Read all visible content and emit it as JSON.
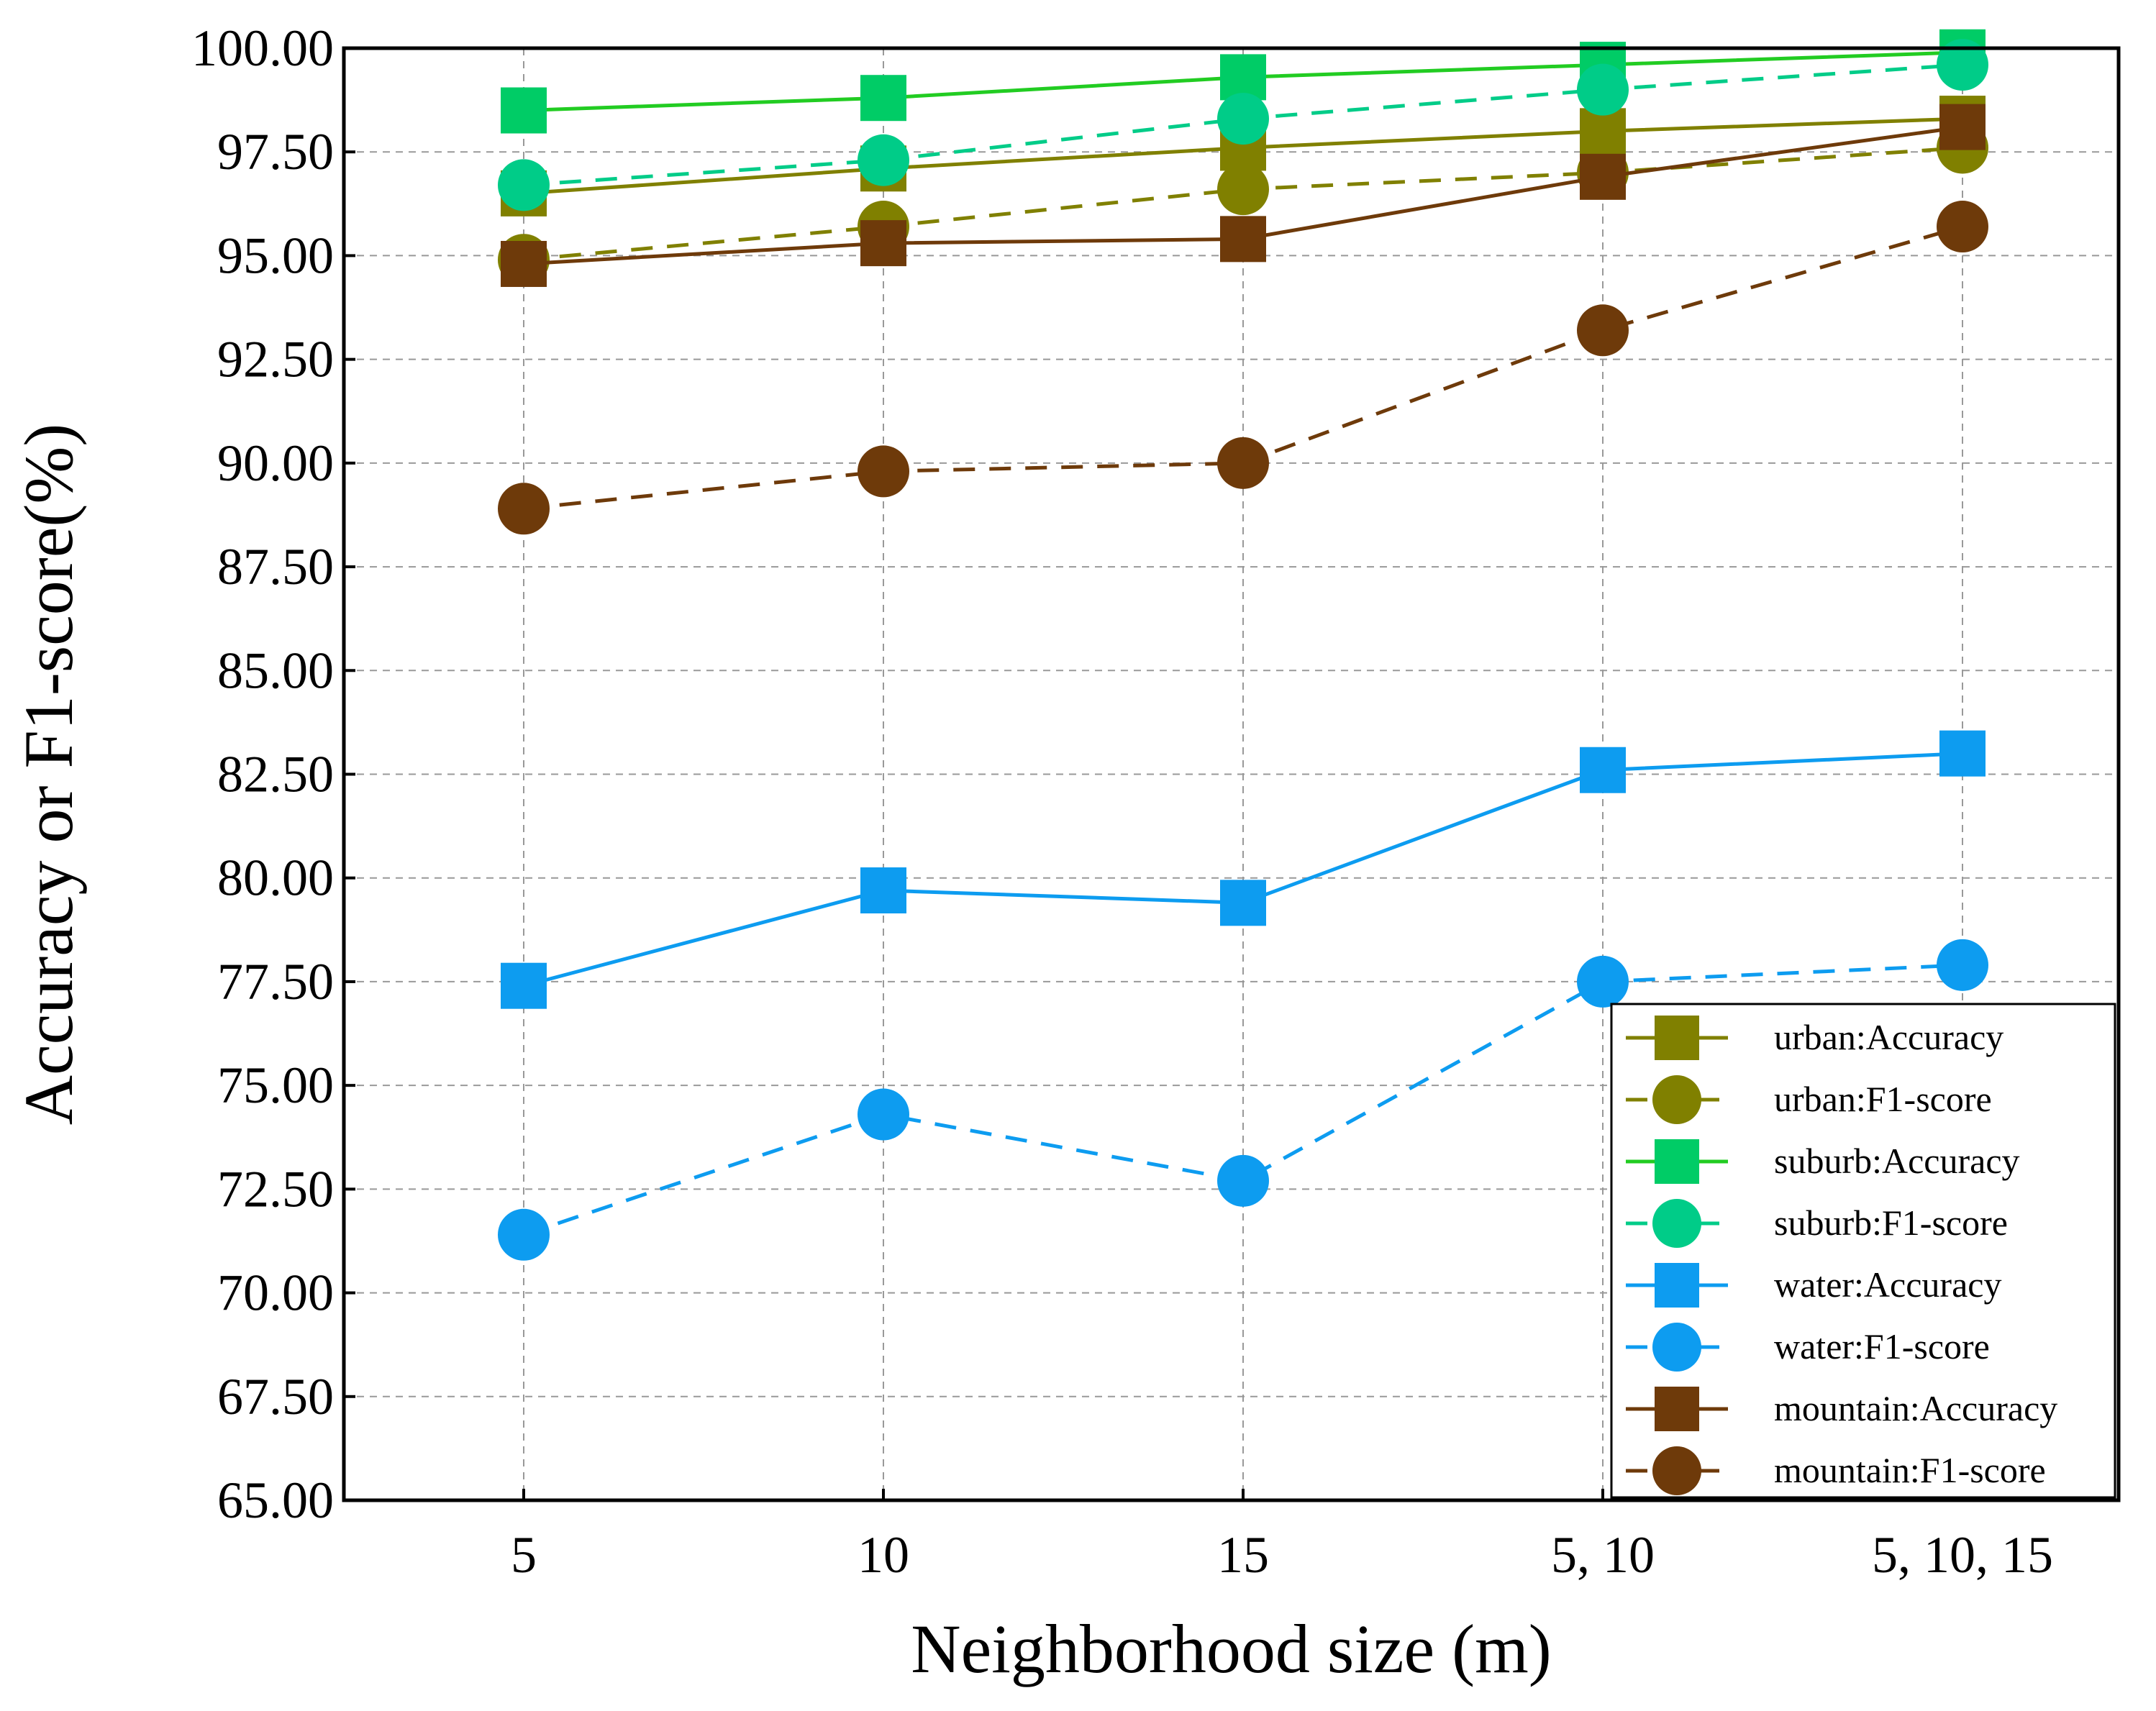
{
  "chart_data": {
    "type": "line",
    "title": "",
    "xlabel": "Neighborhood size (m)",
    "ylabel": "Accuracy or F1-score(%)",
    "categories": [
      "5",
      "10",
      "15",
      "5, 10",
      "5, 10, 15"
    ],
    "ylim": [
      65.0,
      100.0
    ],
    "yticks": [
      "65.00",
      "67.50",
      "70.00",
      "72.50",
      "75.00",
      "77.50",
      "80.00",
      "82.50",
      "85.00",
      "87.50",
      "90.00",
      "92.50",
      "95.00",
      "97.50",
      "100.00"
    ],
    "grid": true,
    "legend_position": "bottom-right",
    "series": [
      {
        "name": "urban:Accuracy",
        "color": "#808000",
        "marker": "square",
        "dashed": false,
        "values": [
          96.5,
          97.1,
          97.6,
          98.0,
          98.3
        ]
      },
      {
        "name": "urban:F1-score",
        "color": "#808000",
        "marker": "circle",
        "dashed": true,
        "values": [
          94.9,
          95.7,
          96.6,
          97.0,
          97.6
        ]
      },
      {
        "name": "suburb:Accuracy",
        "color": "#00CC66",
        "line_color": "#22CC22",
        "marker": "square",
        "dashed": false,
        "values": [
          98.5,
          98.8,
          99.3,
          99.6,
          99.9
        ]
      },
      {
        "name": "suburb:F1-score",
        "color": "#00CC88",
        "marker": "circle",
        "dashed": true,
        "values": [
          96.7,
          97.3,
          98.3,
          99.0,
          99.6
        ]
      },
      {
        "name": "water:Accuracy",
        "color": "#0D9CF0",
        "marker": "square",
        "dashed": false,
        "values": [
          77.4,
          79.7,
          79.4,
          82.6,
          83.0
        ]
      },
      {
        "name": "water:F1-score",
        "color": "#0D9CF0",
        "marker": "circle",
        "dashed": true,
        "values": [
          71.4,
          74.3,
          72.7,
          77.5,
          77.9
        ]
      },
      {
        "name": "mountain:Accuracy",
        "color": "#6E3A0A",
        "marker": "square",
        "dashed": false,
        "values": [
          94.8,
          95.3,
          95.4,
          96.9,
          98.1
        ]
      },
      {
        "name": "mountain:F1-score",
        "color": "#6E3A0A",
        "marker": "circle",
        "dashed": true,
        "values": [
          88.9,
          89.8,
          90.0,
          93.2,
          95.7
        ]
      }
    ]
  }
}
